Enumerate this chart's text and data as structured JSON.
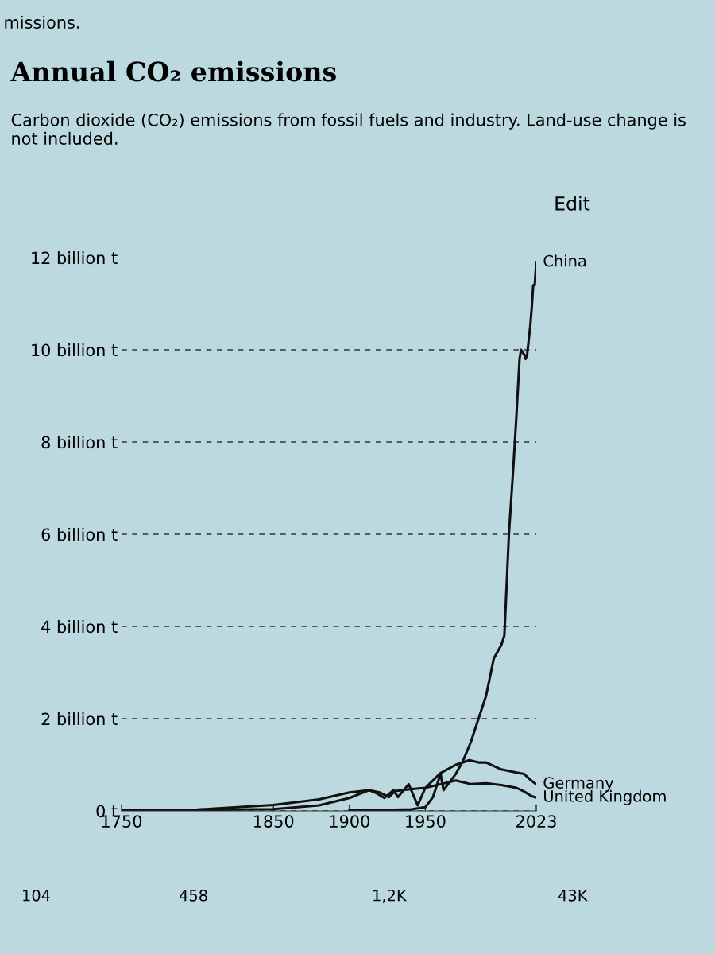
{
  "chart_data": {
    "type": "line",
    "title": "Annual CO₂ emissions",
    "subtitle": "Carbon dioxide (CO₂) emissions from fossil fuels and industry. Land-use change is not included.",
    "annotations": [
      "missions.",
      "Edit",
      "104",
      "458",
      "1,2K",
      "43K"
    ],
    "xlim": [
      1750,
      2023
    ],
    "xticks": [
      1750,
      1850,
      1900,
      1950,
      2023
    ],
    "ylim": [
      0,
      12
    ],
    "yticks": [
      {
        "value": 0,
        "label": "0 t"
      },
      {
        "value": 2,
        "label": "2 billion t"
      },
      {
        "value": 4,
        "label": "4 billion t"
      },
      {
        "value": 6,
        "label": "6 billion t"
      },
      {
        "value": 8,
        "label": "8 billion t"
      },
      {
        "value": 10,
        "label": "10 billion t"
      },
      {
        "value": 12,
        "label": "12 billion t"
      }
    ],
    "grid": "y",
    "legend": false,
    "marker": "none",
    "line_style": "solid",
    "series": [
      {
        "name": "China",
        "color": "#111111",
        "x": [
          1900,
          1920,
          1940,
          1950,
          1955,
          1960,
          1962,
          1970,
          1975,
          1980,
          1985,
          1990,
          1995,
          2000,
          2002,
          2005,
          2008,
          2010,
          2012,
          2013,
          2015,
          2016,
          2017,
          2019,
          2020,
          2021,
          2022,
          2023
        ],
        "values": [
          0.01,
          0.02,
          0.03,
          0.08,
          0.3,
          0.8,
          0.45,
          0.8,
          1.1,
          1.5,
          2.0,
          2.5,
          3.3,
          3.6,
          3.8,
          6.0,
          7.5,
          8.6,
          9.8,
          10.0,
          9.9,
          9.8,
          9.9,
          10.5,
          10.9,
          11.4,
          11.4,
          11.9
        ]
      },
      {
        "name": "Germany",
        "color": "#111111",
        "x": [
          1750,
          1800,
          1850,
          1880,
          1900,
          1913,
          1918,
          1923,
          1929,
          1932,
          1939,
          1945,
          1946,
          1950,
          1960,
          1970,
          1979,
          1985,
          1990,
          2000,
          2010,
          2015,
          2020,
          2023
        ],
        "values": [
          0.01,
          0.02,
          0.04,
          0.12,
          0.28,
          0.45,
          0.38,
          0.28,
          0.45,
          0.3,
          0.58,
          0.12,
          0.2,
          0.5,
          0.82,
          1.0,
          1.1,
          1.05,
          1.05,
          0.9,
          0.83,
          0.8,
          0.65,
          0.58
        ]
      },
      {
        "name": "United Kingdom",
        "color": "#111111",
        "x": [
          1750,
          1800,
          1850,
          1880,
          1900,
          1913,
          1920,
          1926,
          1930,
          1940,
          1950,
          1960,
          1970,
          1980,
          1990,
          2000,
          2010,
          2015,
          2020,
          2023
        ],
        "values": [
          0.01,
          0.03,
          0.13,
          0.25,
          0.4,
          0.45,
          0.4,
          0.3,
          0.43,
          0.47,
          0.5,
          0.58,
          0.66,
          0.58,
          0.6,
          0.56,
          0.5,
          0.42,
          0.32,
          0.29
        ]
      }
    ]
  }
}
